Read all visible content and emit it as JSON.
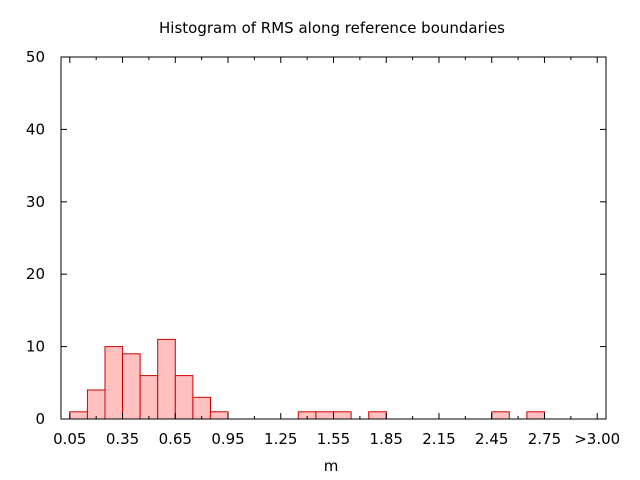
{
  "chart_data": {
    "type": "bar",
    "title": "Histogram of RMS along reference boundaries",
    "xlabel": "m",
    "ylabel": "",
    "ylim": [
      0,
      50
    ],
    "yticks": [
      0,
      10,
      20,
      30,
      40,
      50
    ],
    "xtick_labels": [
      "0.05",
      "0.35",
      "0.65",
      "0.95",
      "1.25",
      "1.55",
      "1.85",
      "2.15",
      "2.45",
      "2.75",
      ">3.00"
    ],
    "bin_width": 0.1,
    "bins": [
      {
        "x": 0.1,
        "count": 1
      },
      {
        "x": 0.2,
        "count": 4
      },
      {
        "x": 0.3,
        "count": 10
      },
      {
        "x": 0.4,
        "count": 9
      },
      {
        "x": 0.5,
        "count": 6
      },
      {
        "x": 0.6,
        "count": 11
      },
      {
        "x": 0.7,
        "count": 6
      },
      {
        "x": 0.8,
        "count": 3
      },
      {
        "x": 0.9,
        "count": 1
      },
      {
        "x": 1.4,
        "count": 1
      },
      {
        "x": 1.5,
        "count": 1
      },
      {
        "x": 1.6,
        "count": 1
      },
      {
        "x": 1.8,
        "count": 1
      },
      {
        "x": 2.5,
        "count": 1
      },
      {
        "x": 2.7,
        "count": 1
      }
    ],
    "grid": false,
    "legend": "none",
    "colors": {
      "bar_fill": "#ffc0c0",
      "bar_stroke": "#cc0000",
      "axis": "#000000"
    }
  }
}
